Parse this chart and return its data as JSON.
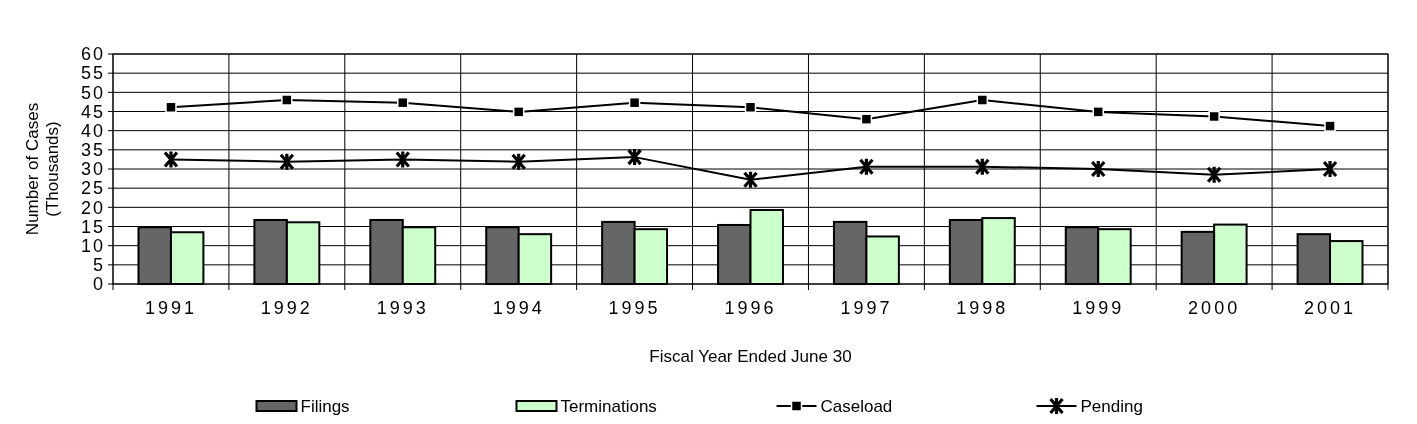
{
  "chart_data": {
    "type": "bar",
    "xlabel": "Fiscal Year Ended June 30",
    "ylabel": "Number of Cases\n(Thousands)",
    "categories": [
      "1991",
      "1992",
      "1993",
      "1994",
      "1995",
      "1996",
      "1997",
      "1998",
      "1999",
      "2000",
      "2001"
    ],
    "series": [
      {
        "name": "Filings",
        "color": "#666666",
        "values": [
          14.8,
          16.7,
          16.7,
          14.8,
          16.2,
          15.4,
          16.2,
          16.7,
          14.8,
          13.6,
          13.0
        ]
      },
      {
        "name": "Terminations",
        "color": "#ccffcc",
        "values": [
          13.5,
          16.1,
          14.8,
          13.0,
          14.3,
          19.3,
          12.4,
          17.2,
          14.3,
          15.5,
          11.2
        ]
      },
      {
        "name": "Caseload",
        "type": "line",
        "color": "#000000",
        "marker": "square",
        "values": [
          46.1,
          48.0,
          47.3,
          44.9,
          47.3,
          46.1,
          43.0,
          48.0,
          44.9,
          43.7,
          41.2
        ]
      },
      {
        "name": "Pending",
        "type": "line",
        "color": "#000000",
        "marker": "cross",
        "values": [
          32.5,
          31.9,
          32.5,
          31.9,
          33.1,
          27.2,
          30.6,
          30.6,
          30.0,
          28.5,
          30.0
        ]
      }
    ],
    "ylim": [
      0,
      60
    ],
    "yticks": [
      0,
      5,
      10,
      15,
      20,
      25,
      30,
      35,
      40,
      45,
      50,
      55,
      60
    ],
    "grid": true,
    "legend": "bottom"
  }
}
